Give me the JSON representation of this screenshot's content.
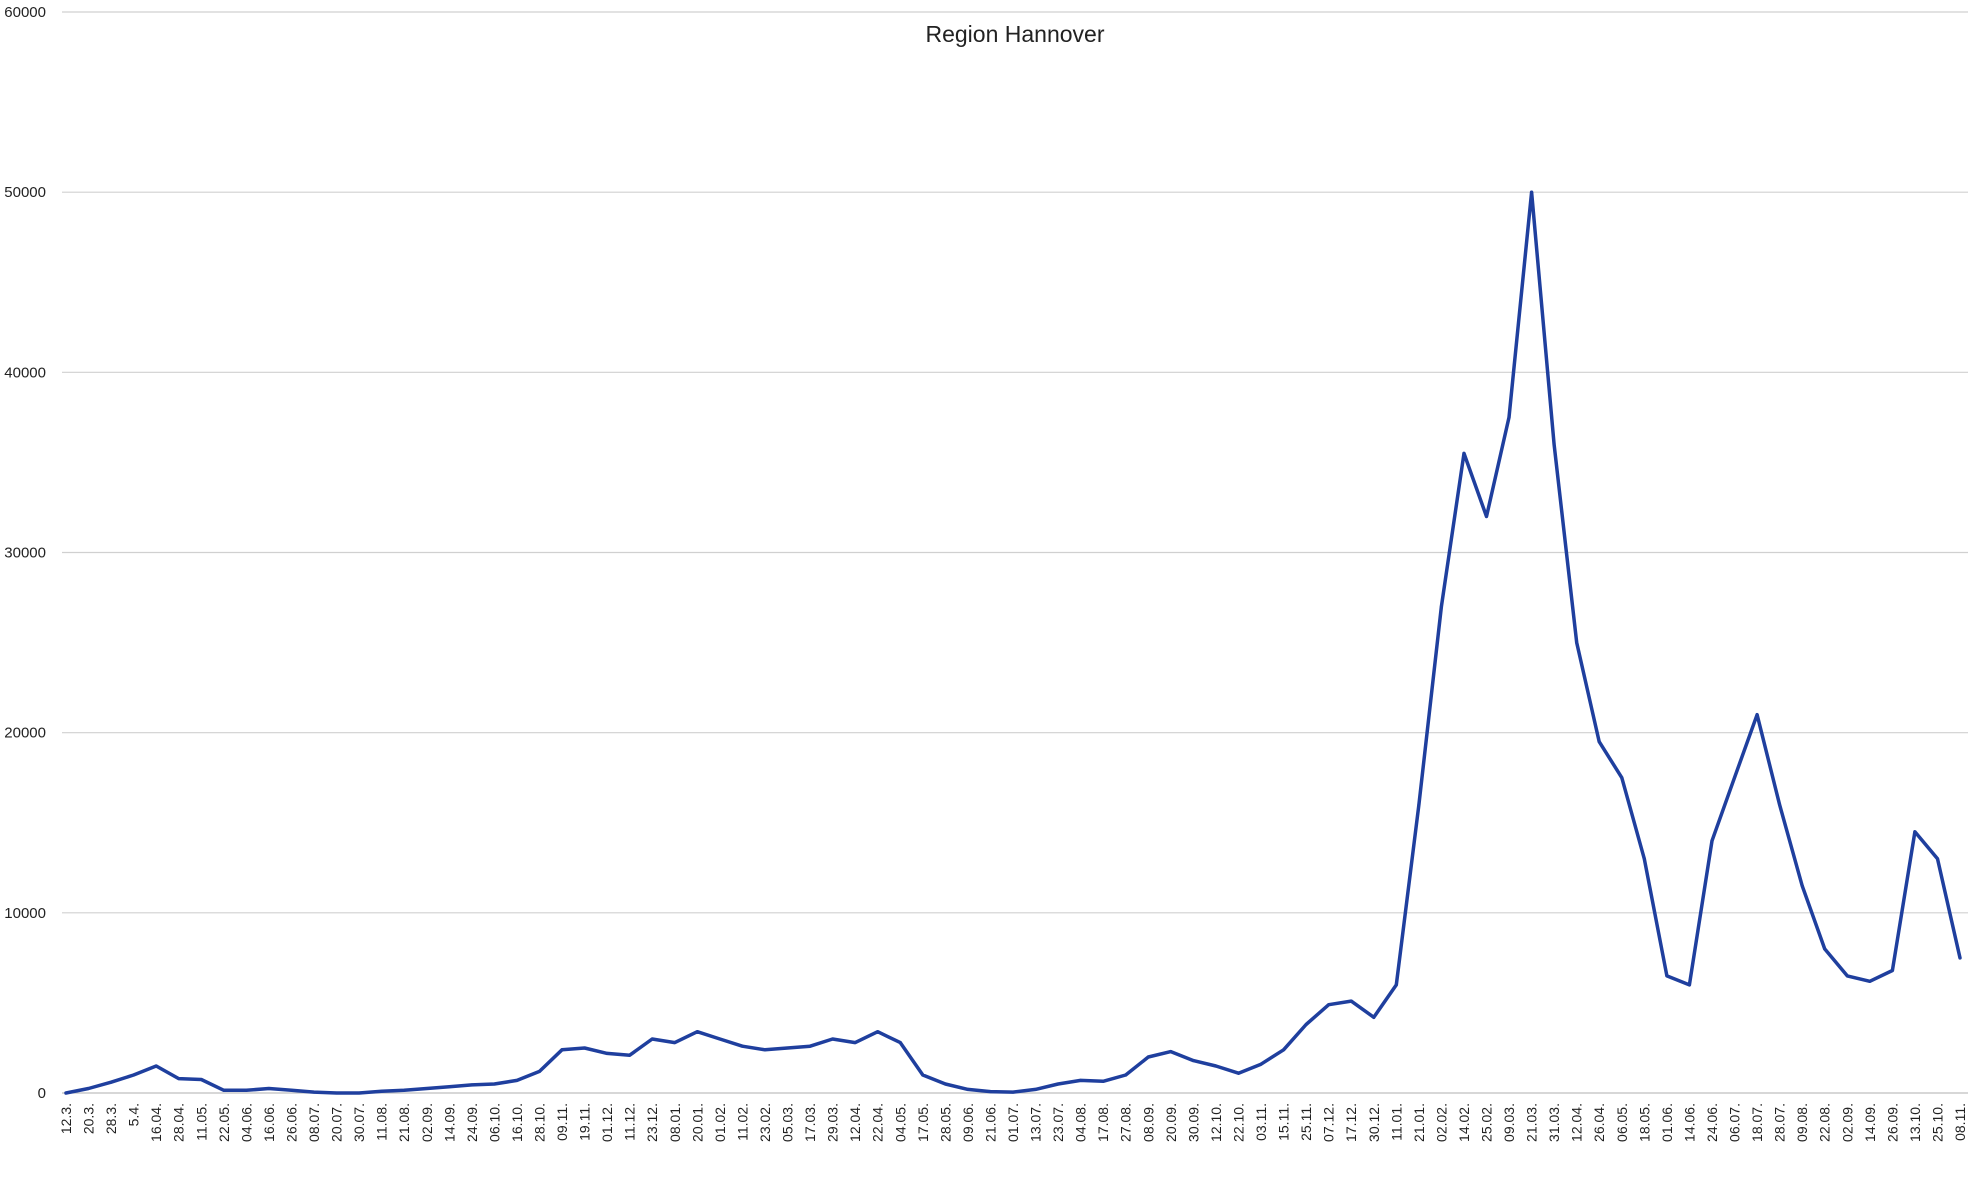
{
  "chart_data": {
    "type": "line",
    "title": "Region Hannover",
    "xlabel": "",
    "ylabel": "",
    "ylim": [
      0,
      60000
    ],
    "yticks": [
      0,
      10000,
      20000,
      30000,
      40000,
      50000,
      60000
    ],
    "grid": true,
    "legend": "none",
    "line_color": "#1f3f9e",
    "categories": [
      "12.3.",
      "20.3.",
      "28.3.",
      "5.4.",
      "16.04.",
      "28.04.",
      "11.05.",
      "22.05.",
      "04.06.",
      "16.06.",
      "26.06.",
      "08.07.",
      "20.07.",
      "30.07.",
      "11.08.",
      "21.08.",
      "02.09.",
      "14.09.",
      "24.09.",
      "06.10.",
      "16.10.",
      "28.10.",
      "09.11.",
      "19.11.",
      "01.12.",
      "11.12.",
      "23.12.",
      "08.01.",
      "20.01.",
      "01.02.",
      "11.02.",
      "23.02.",
      "05.03.",
      "17.03.",
      "29.03.",
      "12.04.",
      "22.04.",
      "04.05.",
      "17.05.",
      "28.05.",
      "09.06.",
      "21.06.",
      "01.07.",
      "13.07.",
      "23.07.",
      "04.08.",
      "17.08.",
      "27.08.",
      "08.09.",
      "20.09.",
      "30.09.",
      "12.10.",
      "22.10.",
      "03.11.",
      "15.11.",
      "25.11.",
      "07.12.",
      "17.12.",
      "30.12.",
      "11.01.",
      "21.01.",
      "02.02.",
      "14.02.",
      "25.02.",
      "09.03.",
      "21.03.",
      "31.03.",
      "12.04.",
      "26.04.",
      "06.05.",
      "18.05.",
      "01.06.",
      "14.06.",
      "24.06.",
      "06.07.",
      "18.07.",
      "28.07.",
      "09.08.",
      "22.08.",
      "02.09.",
      "14.09.",
      "26.09.",
      "13.10.",
      "25.10.",
      "08.11."
    ],
    "series": [
      {
        "values": [
          0,
          250,
          600,
          1000,
          1500,
          800,
          750,
          150,
          150,
          250,
          150,
          50,
          0,
          0,
          100,
          150,
          250,
          350,
          450,
          500,
          700,
          1200,
          2400,
          2500,
          2200,
          2100,
          3000,
          2800,
          3400,
          3000,
          2600,
          2400,
          2500,
          2600,
          3000,
          2800,
          3400,
          2800,
          1000,
          500,
          200,
          80,
          50,
          200,
          500,
          700,
          650,
          1000,
          2000,
          2300,
          1800,
          1500,
          1100,
          1600,
          2400,
          3800,
          4900,
          5100,
          4200,
          6000,
          16000,
          27000,
          35500,
          32000,
          37500,
          50000,
          36000,
          25000,
          19500,
          17500,
          13000,
          6500,
          6000,
          14000,
          17500,
          21000,
          16000,
          11500,
          8000,
          6500,
          6200,
          6800,
          14500,
          13000,
          7500
        ]
      }
    ]
  }
}
